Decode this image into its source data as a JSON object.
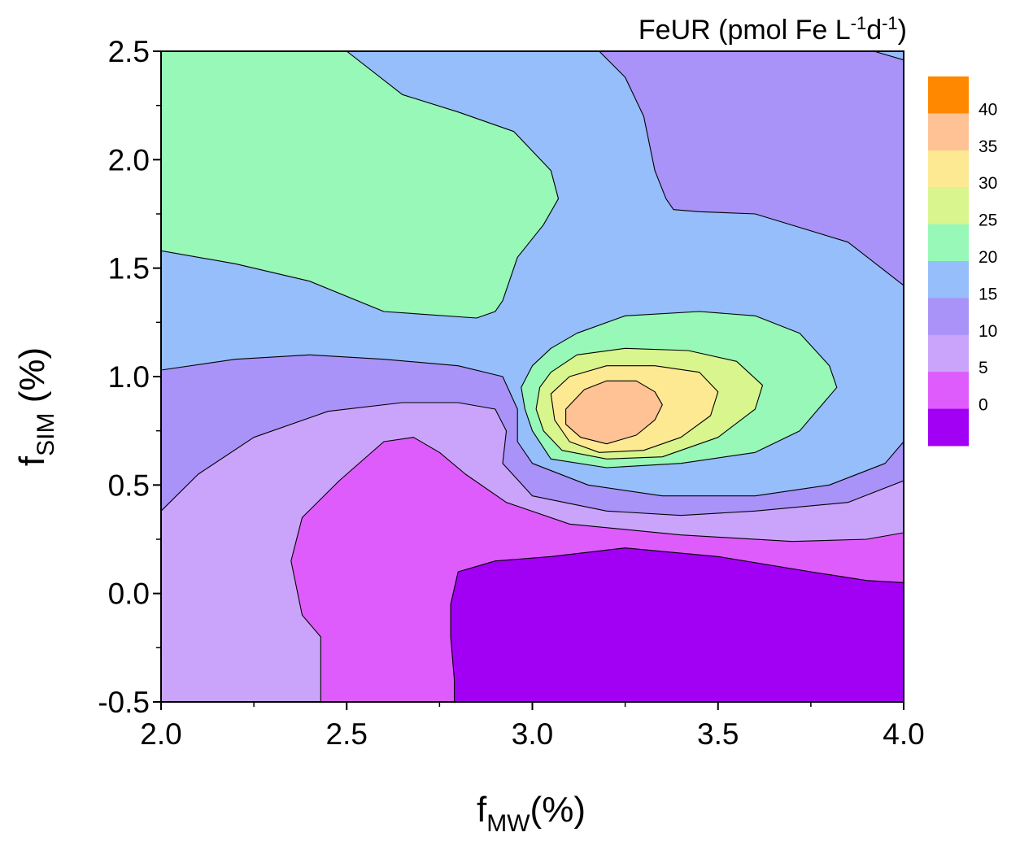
{
  "chart_data": {
    "type": "contour",
    "title": {
      "main": "FeUR (pmol Fe L",
      "sup1": "-1",
      "mid": "d",
      "sup2": "-1",
      "end": ")"
    },
    "xlabel": {
      "base": "f",
      "sub": "MW",
      "suffix": "(%)"
    },
    "ylabel": {
      "base": "f",
      "sub": "SIM",
      "suffix": " (%)"
    },
    "xlim": [
      2.0,
      4.0
    ],
    "ylim": [
      -0.5,
      2.5
    ],
    "xticks": [
      2.0,
      2.5,
      3.0,
      3.5,
      4.0
    ],
    "xtick_labels": [
      "2.0",
      "2.5",
      "3.0",
      "3.5",
      "4.0"
    ],
    "yticks": [
      -0.5,
      0.0,
      0.5,
      1.0,
      1.5,
      2.0,
      2.5
    ],
    "ytick_labels": [
      "-0.5",
      "0.0",
      "0.5",
      "1.0",
      "1.5",
      "2.0",
      "2.5"
    ],
    "colorbar": {
      "levels": [
        "40",
        "35",
        "30",
        "25",
        "20",
        "15",
        "10",
        "5",
        "0"
      ],
      "colors": [
        "#FF8800",
        "#FEC295",
        "#FCE992",
        "#D9F58E",
        "#97F8B7",
        "#95BEFA",
        "#A992F8",
        "#CAA4FA",
        "#DE5CFC",
        "#A100F5"
      ]
    },
    "regions": [
      {
        "level": 15,
        "color": "#95BEFA",
        "points": [
          [
            2.0,
            2.5
          ],
          [
            4.0,
            2.5
          ],
          [
            4.0,
            -0.5
          ],
          [
            2.0,
            -0.5
          ]
        ]
      },
      {
        "level": 10,
        "color": "#A992F8",
        "points": [
          [
            2.0,
            1.03
          ],
          [
            2.2,
            1.08
          ],
          [
            2.4,
            1.1
          ],
          [
            2.6,
            1.08
          ],
          [
            2.8,
            1.05
          ],
          [
            2.92,
            1.0
          ],
          [
            2.96,
            0.85
          ],
          [
            2.96,
            0.7
          ],
          [
            3.0,
            0.6
          ],
          [
            3.15,
            0.5
          ],
          [
            3.35,
            0.45
          ],
          [
            3.6,
            0.45
          ],
          [
            3.8,
            0.5
          ],
          [
            3.95,
            0.6
          ],
          [
            4.0,
            0.7
          ],
          [
            4.0,
            -0.5
          ],
          [
            2.0,
            -0.5
          ]
        ]
      },
      {
        "level": 10,
        "color": "#A992F8",
        "points": [
          [
            3.18,
            2.5
          ],
          [
            4.0,
            2.5
          ],
          [
            4.0,
            1.42
          ],
          [
            3.85,
            1.62
          ],
          [
            3.6,
            1.75
          ],
          [
            3.45,
            1.76
          ],
          [
            3.38,
            1.77
          ],
          [
            3.36,
            1.82
          ],
          [
            3.33,
            1.95
          ],
          [
            3.3,
            2.2
          ],
          [
            3.25,
            2.38
          ]
        ]
      },
      {
        "level": 15,
        "color": "#95BEFA",
        "points": [
          [
            3.92,
            2.5
          ],
          [
            4.0,
            2.5
          ],
          [
            4.0,
            2.46
          ]
        ]
      },
      {
        "level": 5,
        "color": "#CAA4FA",
        "points": [
          [
            2.0,
            0.38
          ],
          [
            2.1,
            0.55
          ],
          [
            2.25,
            0.72
          ],
          [
            2.45,
            0.84
          ],
          [
            2.65,
            0.88
          ],
          [
            2.8,
            0.88
          ],
          [
            2.9,
            0.85
          ],
          [
            2.93,
            0.75
          ],
          [
            2.92,
            0.6
          ],
          [
            3.0,
            0.45
          ],
          [
            3.2,
            0.38
          ],
          [
            3.4,
            0.36
          ],
          [
            3.6,
            0.38
          ],
          [
            3.85,
            0.42
          ],
          [
            4.0,
            0.52
          ],
          [
            4.0,
            -0.5
          ],
          [
            2.0,
            -0.5
          ]
        ]
      },
      {
        "level": 0,
        "color": "#DE5CFC",
        "points": [
          [
            2.43,
            -0.5
          ],
          [
            2.43,
            -0.2
          ],
          [
            2.38,
            -0.1
          ],
          [
            2.35,
            0.15
          ],
          [
            2.38,
            0.35
          ],
          [
            2.48,
            0.52
          ],
          [
            2.6,
            0.7
          ],
          [
            2.68,
            0.72
          ],
          [
            2.75,
            0.65
          ],
          [
            2.82,
            0.55
          ],
          [
            2.93,
            0.42
          ],
          [
            3.1,
            0.32
          ],
          [
            3.4,
            0.27
          ],
          [
            3.7,
            0.24
          ],
          [
            3.9,
            0.25
          ],
          [
            4.0,
            0.28
          ],
          [
            4.0,
            -0.5
          ]
        ]
      },
      {
        "level": -5,
        "color": "#A100F5",
        "points": [
          [
            2.79,
            -0.5
          ],
          [
            2.79,
            -0.4
          ],
          [
            2.78,
            -0.2
          ],
          [
            2.78,
            -0.05
          ],
          [
            2.8,
            0.1
          ],
          [
            2.9,
            0.15
          ],
          [
            3.05,
            0.17
          ],
          [
            3.25,
            0.21
          ],
          [
            3.5,
            0.17
          ],
          [
            3.75,
            0.1
          ],
          [
            3.9,
            0.06
          ],
          [
            4.0,
            0.05
          ],
          [
            4.0,
            -0.5
          ]
        ]
      },
      {
        "level": 20,
        "color": "#97F8B7",
        "points": [
          [
            2.0,
            2.5
          ],
          [
            2.5,
            2.5
          ],
          [
            2.65,
            2.3
          ],
          [
            2.8,
            2.22
          ],
          [
            2.95,
            2.13
          ],
          [
            3.05,
            1.95
          ],
          [
            3.07,
            1.82
          ],
          [
            3.03,
            1.7
          ],
          [
            2.96,
            1.55
          ],
          [
            2.92,
            1.35
          ],
          [
            2.9,
            1.3
          ],
          [
            2.85,
            1.27
          ],
          [
            2.6,
            1.3
          ],
          [
            2.4,
            1.44
          ],
          [
            2.2,
            1.52
          ],
          [
            2.0,
            1.58
          ]
        ]
      },
      {
        "level": 20,
        "color": "#97F8B7",
        "points": [
          [
            2.97,
            0.95
          ],
          [
            3.0,
            1.05
          ],
          [
            3.05,
            1.13
          ],
          [
            3.12,
            1.2
          ],
          [
            3.25,
            1.28
          ],
          [
            3.45,
            1.3
          ],
          [
            3.6,
            1.28
          ],
          [
            3.72,
            1.2
          ],
          [
            3.8,
            1.05
          ],
          [
            3.82,
            0.95
          ],
          [
            3.72,
            0.75
          ],
          [
            3.6,
            0.65
          ],
          [
            3.4,
            0.6
          ],
          [
            3.2,
            0.58
          ],
          [
            3.05,
            0.62
          ],
          [
            3.0,
            0.75
          ],
          [
            2.98,
            0.85
          ]
        ]
      },
      {
        "level": 25,
        "color": "#D9F58E",
        "points": [
          [
            3.02,
            0.95
          ],
          [
            3.05,
            1.02
          ],
          [
            3.12,
            1.1
          ],
          [
            3.25,
            1.13
          ],
          [
            3.42,
            1.12
          ],
          [
            3.55,
            1.07
          ],
          [
            3.62,
            0.96
          ],
          [
            3.6,
            0.85
          ],
          [
            3.5,
            0.72
          ],
          [
            3.35,
            0.63
          ],
          [
            3.2,
            0.62
          ],
          [
            3.08,
            0.66
          ],
          [
            3.03,
            0.75
          ],
          [
            3.01,
            0.85
          ]
        ]
      },
      {
        "level": 30,
        "color": "#FCE992",
        "points": [
          [
            3.05,
            0.92
          ],
          [
            3.1,
            1.0
          ],
          [
            3.2,
            1.05
          ],
          [
            3.33,
            1.05
          ],
          [
            3.45,
            1.02
          ],
          [
            3.5,
            0.93
          ],
          [
            3.48,
            0.82
          ],
          [
            3.4,
            0.72
          ],
          [
            3.3,
            0.66
          ],
          [
            3.18,
            0.65
          ],
          [
            3.1,
            0.7
          ],
          [
            3.06,
            0.8
          ]
        ]
      },
      {
        "level": 35,
        "color": "#FEC295",
        "points": [
          [
            3.09,
            0.85
          ],
          [
            3.14,
            0.94
          ],
          [
            3.2,
            0.98
          ],
          [
            3.28,
            0.98
          ],
          [
            3.33,
            0.93
          ],
          [
            3.35,
            0.87
          ],
          [
            3.33,
            0.8
          ],
          [
            3.28,
            0.73
          ],
          [
            3.2,
            0.69
          ],
          [
            3.13,
            0.72
          ],
          [
            3.09,
            0.78
          ]
        ]
      }
    ]
  }
}
